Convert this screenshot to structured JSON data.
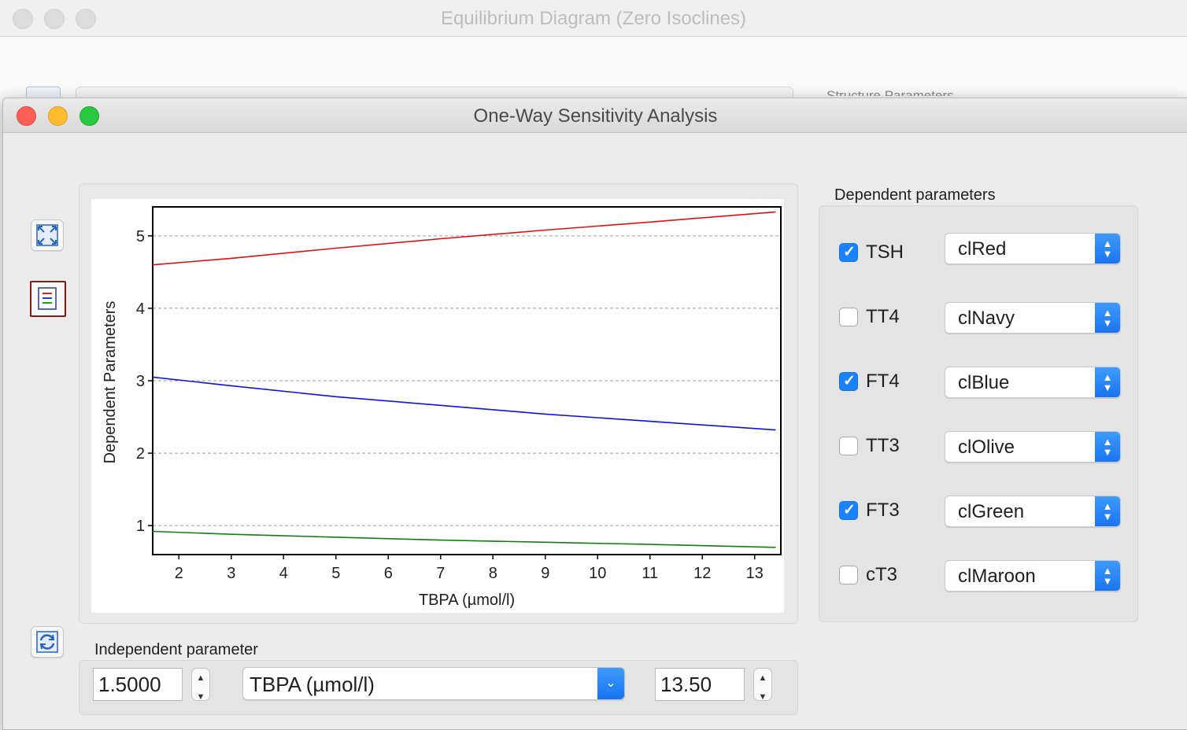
{
  "background_window": {
    "title": "Equilibrium Diagram (Zero Isoclines)",
    "partial_label": "Structure Parameters"
  },
  "window": {
    "title": "One-Way Sensitivity Analysis"
  },
  "toolbar": {
    "fit_icon": "expand-arrows-icon",
    "legend_icon": "legend-icon",
    "refresh_icon": "refresh-icon"
  },
  "dependent": {
    "label": "Dependent parameters",
    "items": [
      {
        "name": "TSH",
        "checked": true,
        "color": "clRed"
      },
      {
        "name": "TT4",
        "checked": false,
        "color": "clNavy"
      },
      {
        "name": "FT4",
        "checked": true,
        "color": "clBlue"
      },
      {
        "name": "TT3",
        "checked": false,
        "color": "clOlive"
      },
      {
        "name": "FT3",
        "checked": true,
        "color": "clGreen"
      },
      {
        "name": "cT3",
        "checked": false,
        "color": "clMaroon"
      }
    ]
  },
  "independent": {
    "label": "Independent parameter",
    "min": "1.5000",
    "parameter": "TBPA (µmol/l)",
    "max": "13.50"
  },
  "chart_data": {
    "type": "line",
    "xlabel": "TBPA (µmol/l)",
    "ylabel": "Dependent Parameters",
    "xlim": [
      1.5,
      13.5
    ],
    "ylim": [
      0.6,
      5.4
    ],
    "xticks": [
      2,
      3,
      4,
      5,
      6,
      7,
      8,
      9,
      10,
      11,
      12,
      13
    ],
    "yticks": [
      1,
      2,
      3,
      4,
      5
    ],
    "grid": "horizontal-dashed",
    "series": [
      {
        "color": "#e01010",
        "x": [
          1.5,
          3,
          5,
          7,
          9,
          11,
          13.4
        ],
        "y": [
          4.6,
          4.69,
          4.83,
          4.96,
          5.08,
          5.19,
          5.33
        ]
      },
      {
        "color": "#1010e0",
        "x": [
          1.5,
          3,
          5,
          7,
          9,
          11,
          13.4
        ],
        "y": [
          3.05,
          2.93,
          2.78,
          2.66,
          2.54,
          2.44,
          2.32
        ]
      },
      {
        "color": "#108010",
        "x": [
          1.5,
          3,
          5,
          7,
          9,
          11,
          13.4
        ],
        "y": [
          0.92,
          0.88,
          0.84,
          0.8,
          0.77,
          0.74,
          0.7
        ]
      }
    ]
  }
}
